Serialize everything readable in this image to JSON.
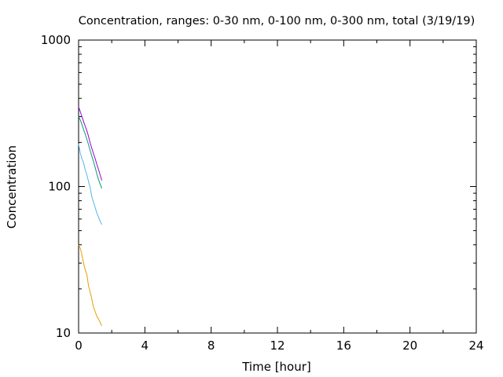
{
  "chart_data": {
    "type": "line",
    "title": "Concentration, ranges: 0-30 nm, 0-100 nm, 0-300 nm, total (3/19/19)",
    "xlabel": "Time [hour]",
    "ylabel": "Concentration",
    "xlim": [
      0,
      24
    ],
    "ylim": [
      10,
      1000
    ],
    "yscale": "log",
    "grid": false,
    "x_ticks": [
      0,
      4,
      8,
      12,
      16,
      20,
      24
    ],
    "x_tick_labels": [
      "0",
      "4",
      "8",
      "12",
      "16",
      "20",
      "24"
    ],
    "y_ticks": [
      10,
      100,
      1000
    ],
    "y_tick_labels": [
      "10",
      "100",
      "1000"
    ],
    "series": [
      {
        "color": "#e69f00",
        "x": [
          0,
          0.1,
          0.2,
          0.3,
          0.4,
          0.5,
          0.6,
          0.7,
          0.8,
          0.9,
          1.0,
          1.1,
          1.2,
          1.3,
          1.4
        ],
        "y": [
          40,
          38,
          34,
          30,
          27,
          25,
          21,
          19,
          17,
          15,
          14,
          13,
          12.5,
          11.8,
          11.2
        ]
      },
      {
        "color": "#56b4e9",
        "x": [
          0,
          0.1,
          0.2,
          0.3,
          0.4,
          0.5,
          0.6,
          0.7,
          0.8,
          0.9,
          1.0,
          1.1,
          1.2,
          1.3,
          1.4
        ],
        "y": [
          195,
          170,
          155,
          145,
          130,
          120,
          108,
          98,
          85,
          78,
          72,
          66,
          62,
          58,
          55
        ]
      },
      {
        "color": "#009e73",
        "x": [
          0,
          0.1,
          0.2,
          0.3,
          0.4,
          0.5,
          0.6,
          0.7,
          0.8,
          0.9,
          1.0,
          1.1,
          1.2,
          1.3,
          1.4
        ],
        "y": [
          300,
          285,
          265,
          245,
          228,
          210,
          193,
          176,
          161,
          148,
          135,
          122,
          112,
          104,
          97
        ]
      },
      {
        "color": "#9400d3",
        "x": [
          0,
          0.1,
          0.2,
          0.3,
          0.4,
          0.5,
          0.6,
          0.7,
          0.8,
          0.9,
          1.0,
          1.1,
          1.2,
          1.3,
          1.4
        ],
        "y": [
          350,
          325,
          300,
          278,
          258,
          240,
          220,
          198,
          182,
          168,
          155,
          142,
          131,
          120,
          110
        ]
      }
    ]
  }
}
